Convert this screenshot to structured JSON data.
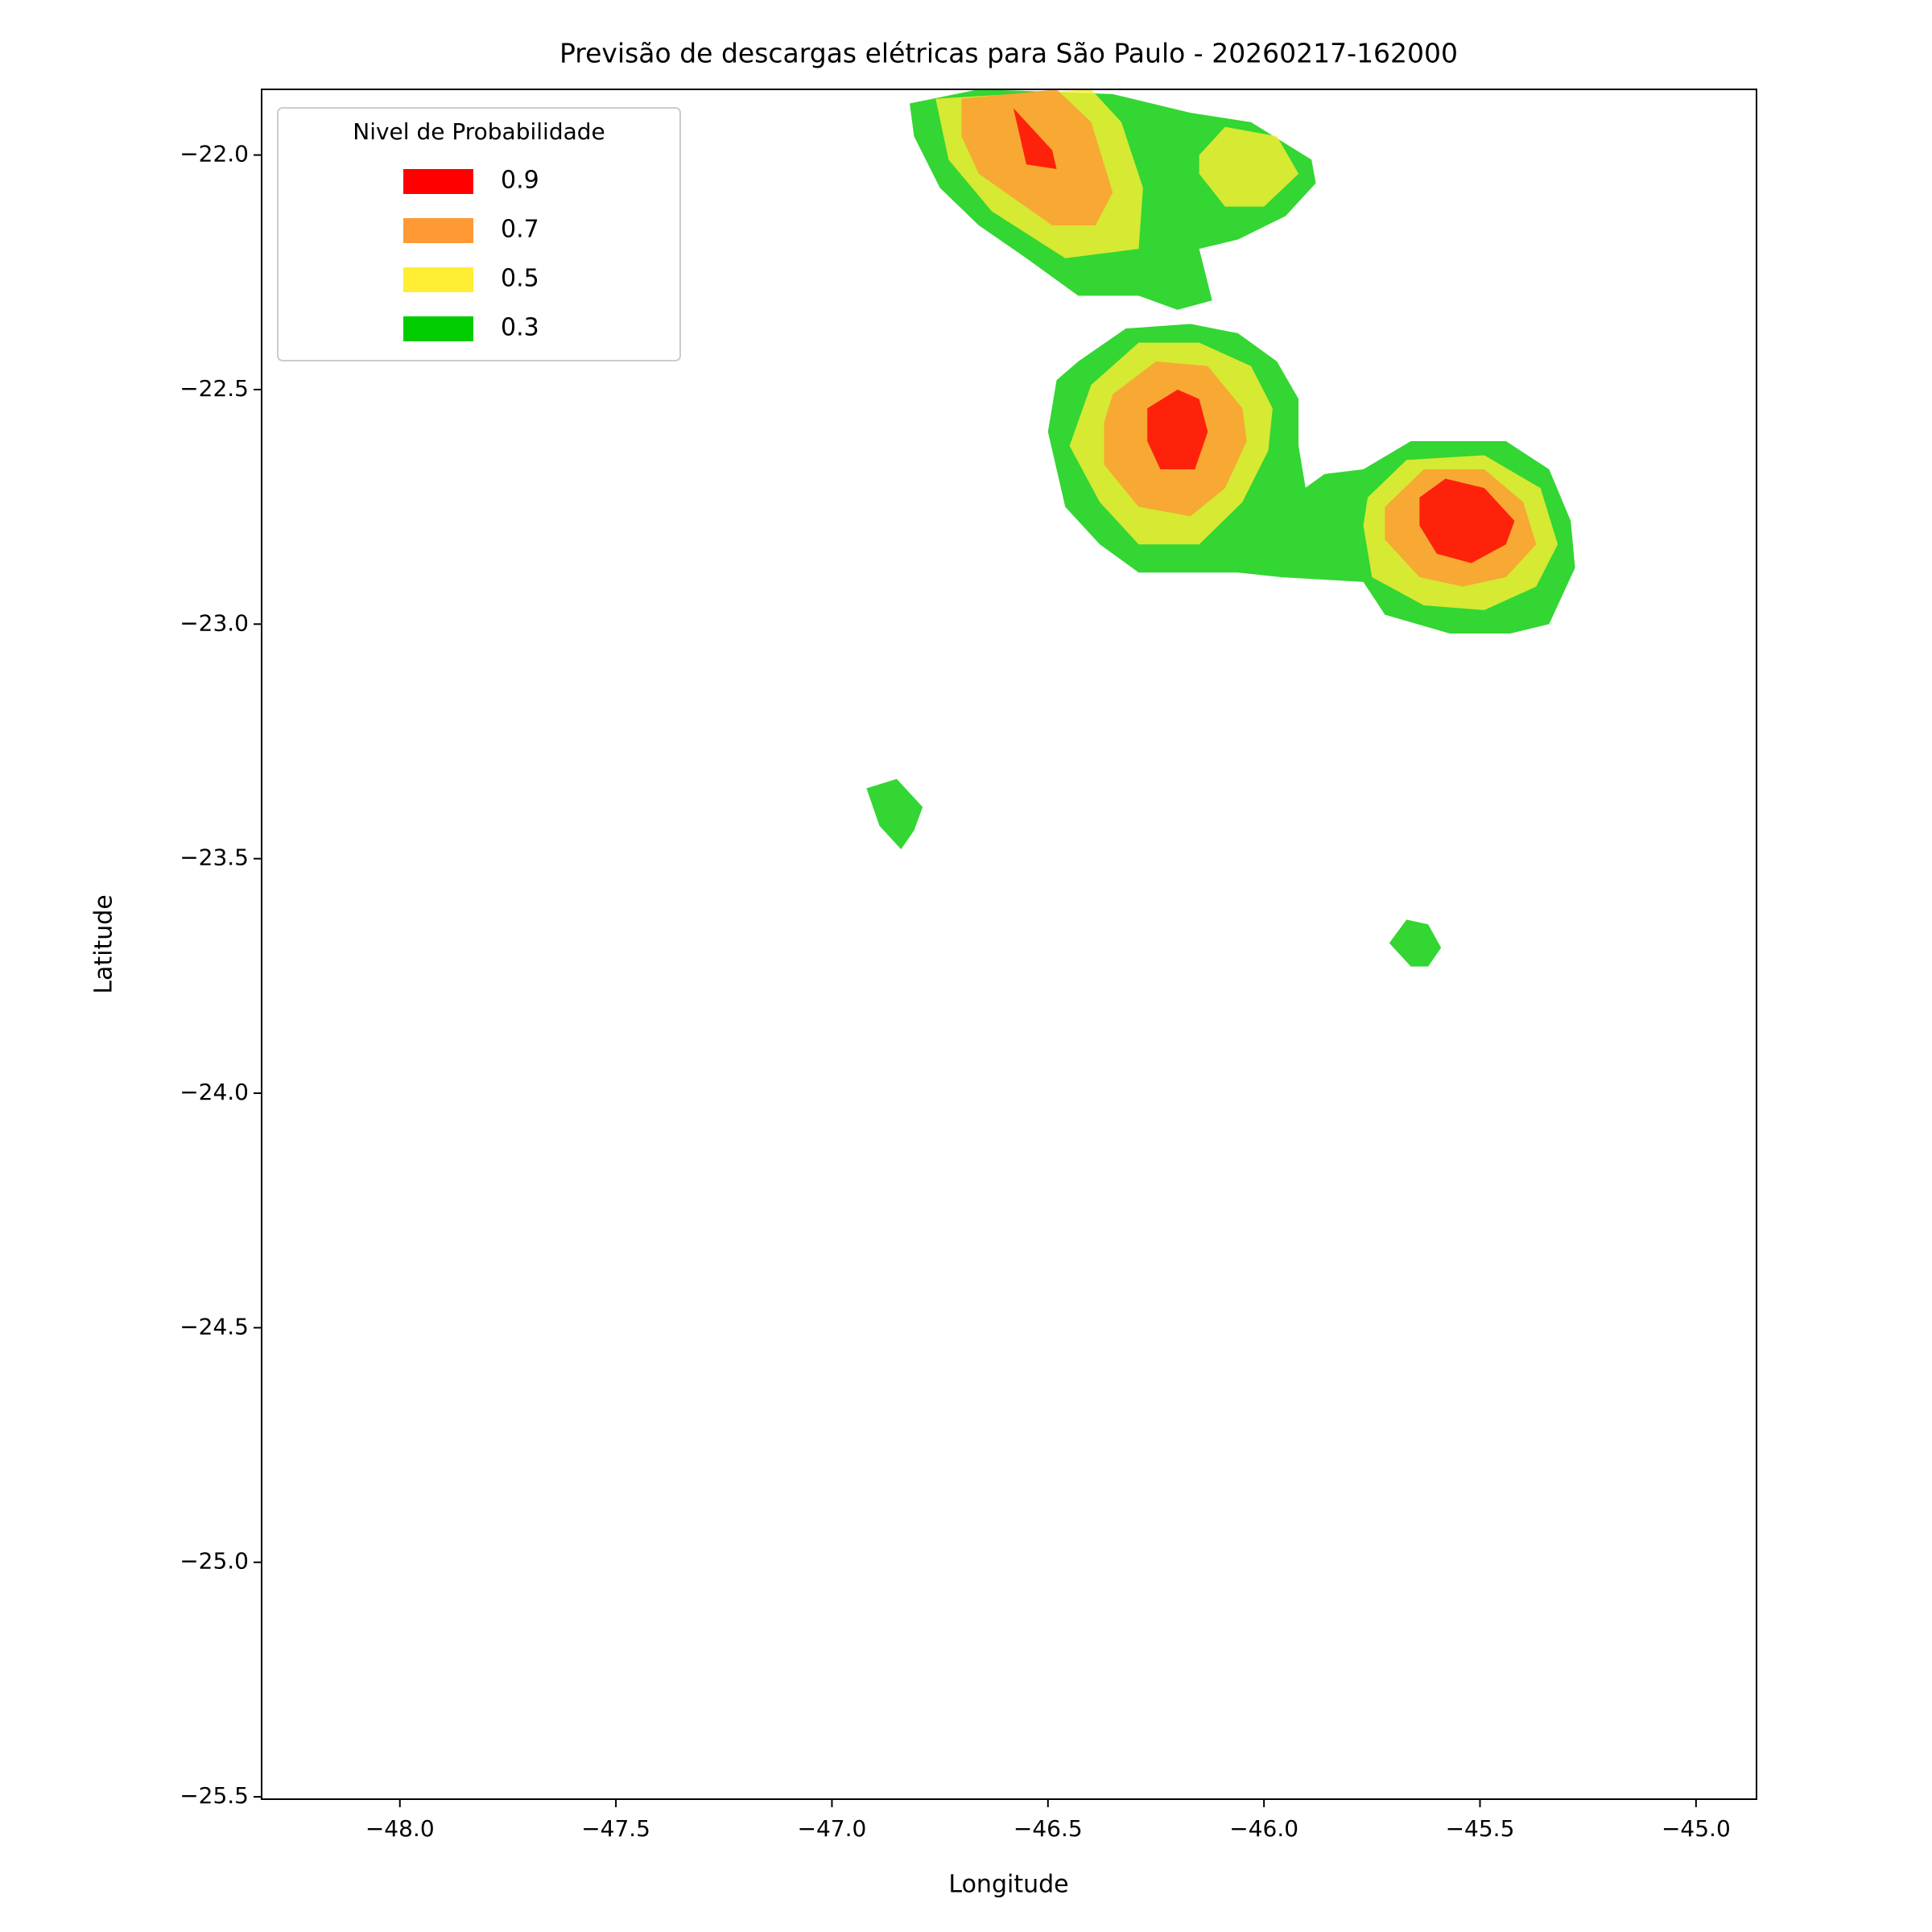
{
  "chart_data": {
    "type": "contourf",
    "title": "Previsão de descargas elétricas para São Paulo - 20260217-162000",
    "xlabel": "Longitude",
    "ylabel": "Latitude",
    "xlim": [
      -48.32,
      -44.86
    ],
    "ylim": [
      -25.505,
      -21.86
    ],
    "xticks": [
      {
        "value": -48.0,
        "label": "−48.0"
      },
      {
        "value": -47.5,
        "label": "−47.5"
      },
      {
        "value": -47.0,
        "label": "−47.0"
      },
      {
        "value": -46.5,
        "label": "−46.5"
      },
      {
        "value": -46.0,
        "label": "−46.0"
      },
      {
        "value": -45.5,
        "label": "−45.5"
      },
      {
        "value": -45.0,
        "label": "−45.0"
      }
    ],
    "yticks": [
      {
        "value": -22.0,
        "label": "−22.0"
      },
      {
        "value": -22.5,
        "label": "−22.5"
      },
      {
        "value": -23.0,
        "label": "−23.0"
      },
      {
        "value": -23.5,
        "label": "−23.5"
      },
      {
        "value": -24.0,
        "label": "−24.0"
      },
      {
        "value": -24.5,
        "label": "−24.5"
      },
      {
        "value": -25.0,
        "label": "−25.0"
      },
      {
        "value": -25.5,
        "label": "−25.5"
      }
    ],
    "legend_title": "Nivel de Probabilidade",
    "legend_position": "upper left",
    "levels": [
      0.9,
      0.7,
      0.5,
      0.3
    ],
    "colors": [
      "#ff0000",
      "#ff9933",
      "#ffee33",
      "#00cc00"
    ],
    "fill_alpha": 0.8,
    "regions": [
      {
        "level": 0.3,
        "lon": [
          -46.82,
          -46.66,
          -46.35,
          -46.17,
          -46.03,
          -45.89,
          -45.88,
          -45.95,
          -46.06,
          -46.15,
          -46.12,
          -46.2,
          -46.29,
          -46.43,
          -46.55,
          -46.66,
          -46.75,
          -46.81
        ],
        "lat": [
          -21.89,
          -21.86,
          -21.87,
          -21.91,
          -21.93,
          -22.01,
          -22.06,
          -22.13,
          -22.18,
          -22.2,
          -22.31,
          -22.33,
          -22.3,
          -22.3,
          -22.22,
          -22.15,
          -22.07,
          -21.96
        ]
      },
      {
        "level": 0.5,
        "lon": [
          -46.76,
          -46.4,
          -46.33,
          -46.28,
          -46.29,
          -46.46,
          -46.63,
          -46.73
        ],
        "lat": [
          -21.88,
          -21.86,
          -21.93,
          -22.07,
          -22.2,
          -22.22,
          -22.12,
          -22.01
        ]
      },
      {
        "level": 0.7,
        "lon": [
          -46.7,
          -46.48,
          -46.4,
          -46.35,
          -46.39,
          -46.49,
          -46.66,
          -46.7
        ],
        "lat": [
          -21.88,
          -21.86,
          -21.93,
          -22.08,
          -22.15,
          -22.15,
          -22.04,
          -21.96
        ]
      },
      {
        "level": 0.9,
        "lon": [
          -46.58,
          -46.49,
          -46.48,
          -46.55
        ],
        "lat": [
          -21.9,
          -21.99,
          -22.03,
          -22.02
        ]
      },
      {
        "level": 0.5,
        "lon": [
          -46.15,
          -46.09,
          -45.97,
          -45.92,
          -46.0,
          -46.09,
          -46.15
        ],
        "lat": [
          -22.0,
          -21.94,
          -21.96,
          -22.04,
          -22.11,
          -22.11,
          -22.04
        ]
      },
      {
        "level": 0.3,
        "lon": [
          -46.43,
          -46.32,
          -46.17,
          -46.06,
          -45.97,
          -45.92,
          -45.92,
          -45.9,
          -45.95,
          -45.86,
          -45.77,
          -45.66,
          -45.44,
          -45.34,
          -45.29,
          -45.28,
          -45.34,
          -45.43,
          -45.57,
          -45.72,
          -45.77,
          -45.96,
          -46.06,
          -46.29,
          -46.38,
          -46.46,
          -46.5,
          -46.48
        ],
        "lat": [
          -22.44,
          -22.37,
          -22.36,
          -22.38,
          -22.44,
          -22.52,
          -22.62,
          -22.73,
          -22.74,
          -22.68,
          -22.67,
          -22.61,
          -22.61,
          -22.67,
          -22.78,
          -22.88,
          -23.0,
          -23.02,
          -23.02,
          -22.98,
          -22.91,
          -22.9,
          -22.89,
          -22.89,
          -22.83,
          -22.75,
          -22.59,
          -22.48
        ]
      },
      {
        "level": 0.5,
        "lon": [
          -46.4,
          -46.29,
          -46.15,
          -46.03,
          -45.98,
          -45.99,
          -46.05,
          -46.15,
          -46.29,
          -46.38,
          -46.45
        ],
        "lat": [
          -22.49,
          -22.4,
          -22.4,
          -22.45,
          -22.54,
          -22.63,
          -22.74,
          -22.83,
          -22.83,
          -22.74,
          -22.62
        ]
      },
      {
        "level": 0.7,
        "lon": [
          -46.35,
          -46.25,
          -46.13,
          -46.05,
          -46.04,
          -46.09,
          -46.17,
          -46.29,
          -46.37,
          -46.37
        ],
        "lat": [
          -22.51,
          -22.44,
          -22.45,
          -22.54,
          -22.61,
          -22.71,
          -22.77,
          -22.75,
          -22.66,
          -22.57
        ]
      },
      {
        "level": 0.9,
        "lon": [
          -46.27,
          -46.2,
          -46.15,
          -46.13,
          -46.16,
          -46.24,
          -46.27
        ],
        "lat": [
          -22.54,
          -22.5,
          -22.52,
          -22.59,
          -22.67,
          -22.67,
          -22.61
        ]
      },
      {
        "level": 0.5,
        "lon": [
          -45.76,
          -45.67,
          -45.49,
          -45.36,
          -45.32,
          -45.37,
          -45.49,
          -45.63,
          -45.75,
          -45.77
        ],
        "lat": [
          -22.73,
          -22.65,
          -22.64,
          -22.71,
          -22.83,
          -22.92,
          -22.97,
          -22.96,
          -22.9,
          -22.79
        ]
      },
      {
        "level": 0.7,
        "lon": [
          -45.72,
          -45.63,
          -45.49,
          -45.4,
          -45.37,
          -45.44,
          -45.54,
          -45.64,
          -45.72
        ],
        "lat": [
          -22.75,
          -22.67,
          -22.67,
          -22.74,
          -22.83,
          -22.9,
          -22.92,
          -22.9,
          -22.82
        ]
      },
      {
        "level": 0.9,
        "lon": [
          -45.64,
          -45.58,
          -45.49,
          -45.42,
          -45.44,
          -45.52,
          -45.6,
          -45.64
        ],
        "lat": [
          -22.73,
          -22.69,
          -22.71,
          -22.78,
          -22.83,
          -22.87,
          -22.85,
          -22.79
        ]
      },
      {
        "level": 0.3,
        "lon": [
          -46.92,
          -46.85,
          -46.79,
          -46.81,
          -46.84,
          -46.89
        ],
        "lat": [
          -23.35,
          -23.33,
          -23.39,
          -23.44,
          -23.48,
          -23.43
        ]
      },
      {
        "level": 0.3,
        "lon": [
          -45.71,
          -45.67,
          -45.62,
          -45.59,
          -45.62,
          -45.66
        ],
        "lat": [
          -23.68,
          -23.63,
          -23.64,
          -23.69,
          -23.73,
          -23.73
        ]
      }
    ]
  }
}
